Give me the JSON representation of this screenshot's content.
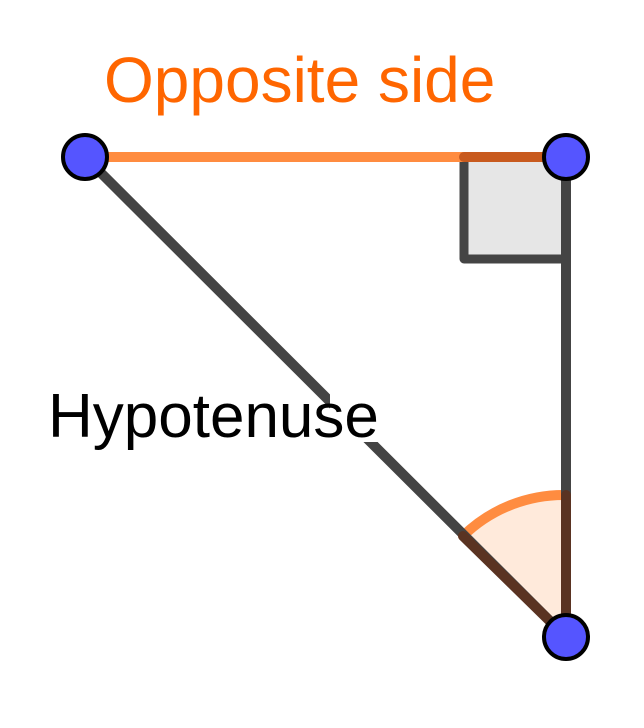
{
  "labels": {
    "opposite": "Opposite side",
    "hypotenuse": "Hypotenuse"
  },
  "colors": {
    "opposite_text": "#ff6600",
    "opposite_side": "#ff8c40",
    "side_dark": "#444444",
    "point_fill": "#5555ff",
    "point_stroke": "#000000",
    "right_angle_fill": "#e6e6e6",
    "angle_fill": "#ffeadb",
    "angle_stroke": "#ff8c40",
    "label_text": "#000000"
  }
}
